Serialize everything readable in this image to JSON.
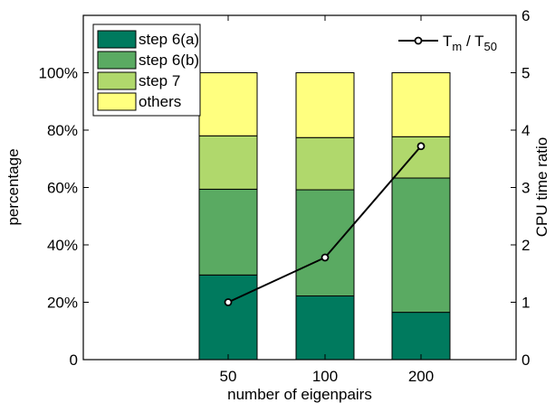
{
  "chart_data": {
    "type": "bar",
    "stacked": true,
    "categories": [
      "50",
      "100",
      "200"
    ],
    "xlabel": "number of eigenpairs",
    "ylabel": "percentage",
    "ylim": [
      0,
      120
    ],
    "yticks": [
      "0",
      "20%",
      "40%",
      "60%",
      "80%",
      "100%"
    ],
    "ytick_values": [
      0,
      20,
      40,
      60,
      80,
      100
    ],
    "series": [
      {
        "name": "step 6(a)",
        "values": [
          29.5,
          22.2,
          16.5
        ],
        "color": "#007A5E"
      },
      {
        "name": "step 6(b)",
        "values": [
          29.9,
          37.0,
          46.8
        ],
        "color": "#5AAA62"
      },
      {
        "name": "step 7",
        "values": [
          18.6,
          18.2,
          14.4
        ],
        "color": "#B0D86C"
      },
      {
        "name": "others",
        "values": [
          22.0,
          22.6,
          22.3
        ],
        "color": "#FFFF7F"
      }
    ],
    "y2label": "CPU time ratio",
    "y2lim": [
      0,
      6
    ],
    "y2ticks": [
      "0",
      "1",
      "2",
      "3",
      "4",
      "5",
      "6"
    ],
    "y2tick_values": [
      0,
      1,
      2,
      3,
      4,
      5,
      6
    ],
    "line_series": {
      "name_main": "T",
      "name_sub1": "m",
      "name_mid": " / T",
      "name_sub2": "50",
      "values": [
        1.0,
        1.78,
        3.72
      ],
      "color": "#000000"
    },
    "legend_position": "top-left and top-right",
    "grid": false
  }
}
